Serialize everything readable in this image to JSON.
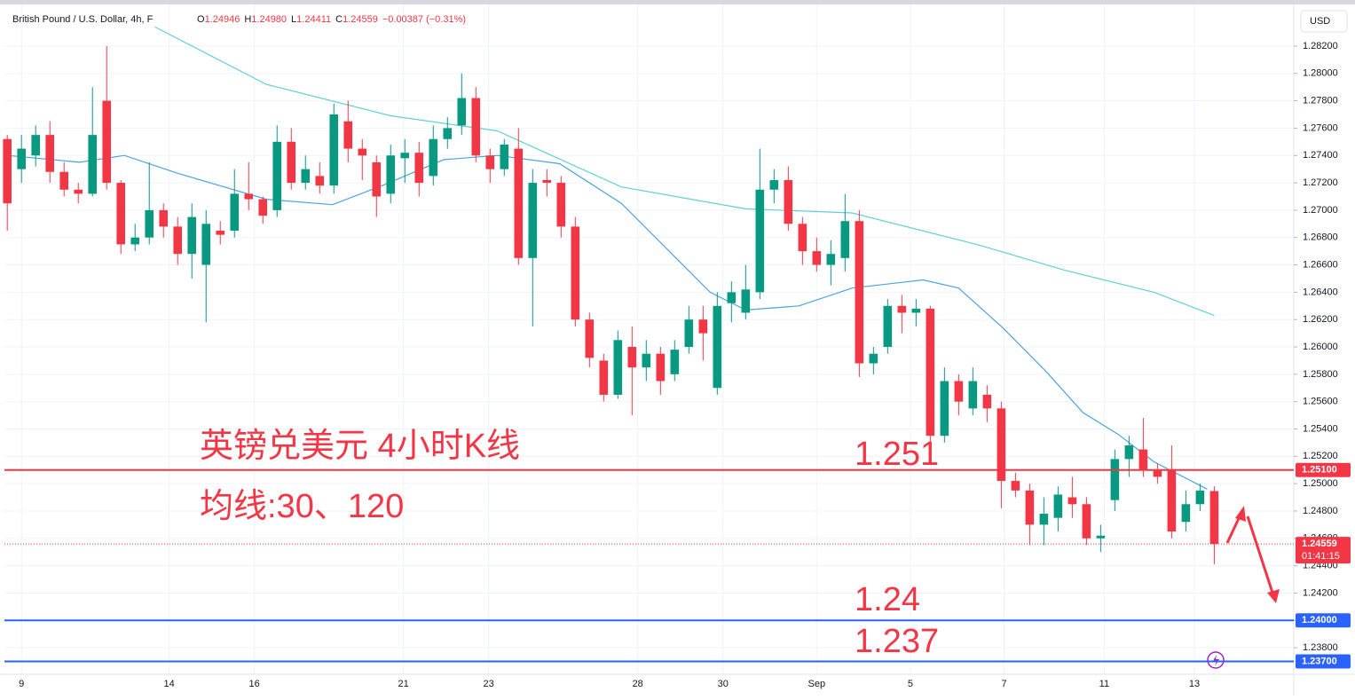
{
  "chart_data": {
    "type": "candlestick",
    "header": {
      "title": "British Pound / U.S. Dollar, 4h, F",
      "ohlc": [
        {
          "key": "O",
          "value": "1.24946"
        },
        {
          "key": "H",
          "value": "1.24980"
        },
        {
          "key": "L",
          "value": "1.24411"
        },
        {
          "key": "C",
          "value": "1.24559"
        }
      ],
      "change": "−0.00387 (−0.31%)"
    },
    "currency": "USD",
    "annotations": [
      "英镑兑美元 4小时K线",
      "均线:30、120"
    ],
    "up_color": "#089981",
    "down_color": "#f23645",
    "grid": true,
    "open": [
      1.2752,
      1.273,
      1.274,
      1.2755,
      1.2728,
      1.2715,
      1.2712,
      1.278,
      1.272,
      1.2675,
      1.268,
      1.27,
      1.2688,
      1.2668,
      1.266,
      1.2685,
      1.2685,
      1.2712,
      1.2708,
      1.27,
      1.275,
      1.272,
      1.2725,
      1.2718,
      1.2765,
      1.2745,
      1.2735,
      1.2712,
      1.2738,
      1.2742,
      1.2725,
      1.2752,
      1.2762,
      1.2782,
      1.274,
      1.273,
      1.2745,
      1.2665,
      1.2722,
      1.272,
      1.2688,
      1.262,
      1.259,
      1.2565,
      1.26,
      1.2585,
      1.2595,
      1.258,
      1.26,
      1.262,
      1.257,
      1.2632,
      1.2625,
      1.264,
      1.2715,
      1.2722,
      1.269,
      1.267,
      1.266,
      1.2665,
      1.2692,
      1.2588,
      1.26,
      1.263,
      1.2625,
      1.2628,
      1.2535,
      1.2575,
      1.2555,
      1.2565,
      1.2555,
      1.2502,
      1.2495,
      1.247,
      1.2475,
      1.249,
      1.2485,
      1.246,
      1.2488,
      1.2518,
      1.2525,
      1.251,
      1.251,
      1.2472,
      1.2485,
      1.24946
    ],
    "high": [
      1.2755,
      1.2755,
      1.2762,
      1.2765,
      1.2735,
      1.272,
      1.279,
      1.282,
      1.2722,
      1.269,
      1.2735,
      1.2705,
      1.2695,
      1.2705,
      1.27,
      1.2692,
      1.273,
      1.2735,
      1.271,
      1.2762,
      1.276,
      1.274,
      1.2735,
      1.2778,
      1.278,
      1.2752,
      1.274,
      1.2748,
      1.2752,
      1.275,
      1.2762,
      1.2768,
      1.28,
      1.279,
      1.2745,
      1.2752,
      1.276,
      1.273,
      1.273,
      1.2725,
      1.2695,
      1.2625,
      1.2595,
      1.2612,
      1.2615,
      1.2605,
      1.26,
      1.2605,
      1.263,
      1.263,
      1.264,
      1.2648,
      1.266,
      1.2745,
      1.273,
      1.2732,
      1.2695,
      1.268,
      1.2678,
      1.2712,
      1.27,
      1.26,
      1.2635,
      1.2638,
      1.2635,
      1.263,
      1.2585,
      1.258,
      1.2585,
      1.2572,
      1.256,
      1.2508,
      1.25,
      1.249,
      1.2498,
      1.2505,
      1.249,
      1.247,
      1.2525,
      1.2535,
      1.2548,
      1.2515,
      1.2528,
      1.2495,
      1.25,
      1.2498
    ],
    "low": [
      1.2685,
      1.272,
      1.2732,
      1.272,
      1.271,
      1.2705,
      1.271,
      1.2715,
      1.2668,
      1.267,
      1.2675,
      1.268,
      1.266,
      1.265,
      1.2618,
      1.2675,
      1.268,
      1.27,
      1.269,
      1.2695,
      1.2715,
      1.2715,
      1.2712,
      1.2712,
      1.2735,
      1.2722,
      1.2695,
      1.2705,
      1.272,
      1.271,
      1.2718,
      1.2745,
      1.2755,
      1.2735,
      1.272,
      1.2725,
      1.266,
      1.2615,
      1.271,
      1.268,
      1.2615,
      1.2585,
      1.256,
      1.2562,
      1.255,
      1.2575,
      1.2565,
      1.2575,
      1.2595,
      1.259,
      1.2565,
      1.2618,
      1.262,
      1.2635,
      1.2705,
      1.2685,
      1.266,
      1.2655,
      1.2645,
      1.2655,
      1.2578,
      1.258,
      1.2595,
      1.261,
      1.2615,
      1.253,
      1.253,
      1.255,
      1.255,
      1.2545,
      1.2482,
      1.249,
      1.2455,
      1.2455,
      1.2465,
      1.2475,
      1.2455,
      1.245,
      1.248,
      1.2505,
      1.2505,
      1.25,
      1.246,
      1.2465,
      1.248,
      1.24411
    ],
    "close": [
      1.2705,
      1.2745,
      1.2755,
      1.2728,
      1.2715,
      1.2712,
      1.2755,
      1.272,
      1.2675,
      1.268,
      1.27,
      1.2688,
      1.2668,
      1.2695,
      1.269,
      1.2682,
      1.2712,
      1.2708,
      1.2696,
      1.275,
      1.272,
      1.273,
      1.2718,
      1.277,
      1.2745,
      1.274,
      1.271,
      1.274,
      1.2742,
      1.272,
      1.2752,
      1.276,
      1.2782,
      1.274,
      1.273,
      1.2748,
      1.2665,
      1.272,
      1.272,
      1.2688,
      1.262,
      1.2592,
      1.2565,
      1.2605,
      1.2585,
      1.2595,
      1.2575,
      1.2598,
      1.262,
      1.261,
      1.263,
      1.264,
      1.2642,
      1.2715,
      1.2722,
      1.269,
      1.267,
      1.266,
      1.2668,
      1.2692,
      1.2588,
      1.2595,
      1.263,
      1.2625,
      1.2628,
      1.2535,
      1.2575,
      1.256,
      1.2575,
      1.2555,
      1.2502,
      1.2495,
      1.247,
      1.2478,
      1.2492,
      1.2485,
      1.246,
      1.2462,
      1.2518,
      1.2528,
      1.251,
      1.2505,
      1.2465,
      1.2485,
      1.2495,
      1.24559
    ],
    "ma_lines": [
      {
        "color": "#4aa3df",
        "x": [
          0,
          5.1,
          8.25,
          12,
          18.25,
          22.9,
          26.4,
          30.75,
          34.5,
          38.9,
          43.25,
          47,
          49.5,
          52,
          55.75,
          59.5,
          64.5,
          67,
          70.1,
          73.25,
          75.75,
          78.25,
          80.75,
          84.5
        ],
        "values": [
          1.274,
          1.2735,
          1.274,
          1.2727,
          1.2708,
          1.2704,
          1.2718,
          1.2737,
          1.274,
          1.2734,
          1.2705,
          1.2666,
          1.264,
          1.2627,
          1.263,
          1.2643,
          1.2649,
          1.2643,
          1.2614,
          1.2581,
          1.2552,
          1.2536,
          1.2516,
          1.2496
        ]
      },
      {
        "color": "#5fd0d8",
        "x": [
          10.4,
          18.25,
          27,
          34.5,
          43.25,
          52,
          59.5,
          68.25,
          74.5,
          80.75,
          85
        ],
        "values": [
          1.2834,
          1.2792,
          1.2769,
          1.2758,
          1.2717,
          1.2701,
          1.2698,
          1.2675,
          1.2656,
          1.264,
          1.2623
        ]
      }
    ],
    "levels": [
      {
        "value": 1.251,
        "label": "1.25100",
        "annotation": "1.251",
        "color": "#f23645"
      },
      {
        "value": 1.24,
        "label": "1.24000",
        "annotation": "1.24",
        "color": "#2962ff"
      },
      {
        "value": 1.237,
        "label": "1.23700",
        "annotation": "1.237",
        "color": "#2962ff"
      }
    ],
    "last": {
      "value": 1.24559,
      "label": "1.24559",
      "countdown": "01:41:15"
    },
    "xlim": [
      -0.2,
      90.6
    ],
    "xticks": [
      {
        "value": 1,
        "label": "9"
      },
      {
        "value": 11.4,
        "label": "14"
      },
      {
        "value": 17.4,
        "label": "16"
      },
      {
        "value": 27.9,
        "label": "21"
      },
      {
        "value": 33.9,
        "label": "23"
      },
      {
        "value": 44.4,
        "label": "28"
      },
      {
        "value": 50.4,
        "label": "30"
      },
      {
        "value": 57,
        "label": "Sep"
      },
      {
        "value": 63.6,
        "label": "5"
      },
      {
        "value": 70.2,
        "label": "7"
      },
      {
        "value": 77.25,
        "label": "11"
      },
      {
        "value": 83.6,
        "label": "13"
      }
    ],
    "ylim": [
      1.23606,
      1.28537
    ],
    "yticks": [
      {
        "value": 1.238,
        "label": "1.23800"
      },
      {
        "value": 1.24,
        "label": "1.24000"
      },
      {
        "value": 1.242,
        "label": "1.24200"
      },
      {
        "value": 1.244,
        "label": "1.24400"
      },
      {
        "value": 1.246,
        "label": "1.24600"
      },
      {
        "value": 1.248,
        "label": "1.24800"
      },
      {
        "value": 1.25,
        "label": "1.25000"
      },
      {
        "value": 1.252,
        "label": "1.25200"
      },
      {
        "value": 1.254,
        "label": "1.25400"
      },
      {
        "value": 1.256,
        "label": "1.25600"
      },
      {
        "value": 1.258,
        "label": "1.25800"
      },
      {
        "value": 1.26,
        "label": "1.26000"
      },
      {
        "value": 1.262,
        "label": "1.26200"
      },
      {
        "value": 1.264,
        "label": "1.26400"
      },
      {
        "value": 1.266,
        "label": "1.26600"
      },
      {
        "value": 1.268,
        "label": "1.26800"
      },
      {
        "value": 1.27,
        "label": "1.27000"
      },
      {
        "value": 1.272,
        "label": "1.27200"
      },
      {
        "value": 1.274,
        "label": "1.27400"
      },
      {
        "value": 1.276,
        "label": "1.27600"
      },
      {
        "value": 1.278,
        "label": "1.27800"
      },
      {
        "value": 1.28,
        "label": "1.28000"
      },
      {
        "value": 1.282,
        "label": "1.28200"
      }
    ]
  }
}
